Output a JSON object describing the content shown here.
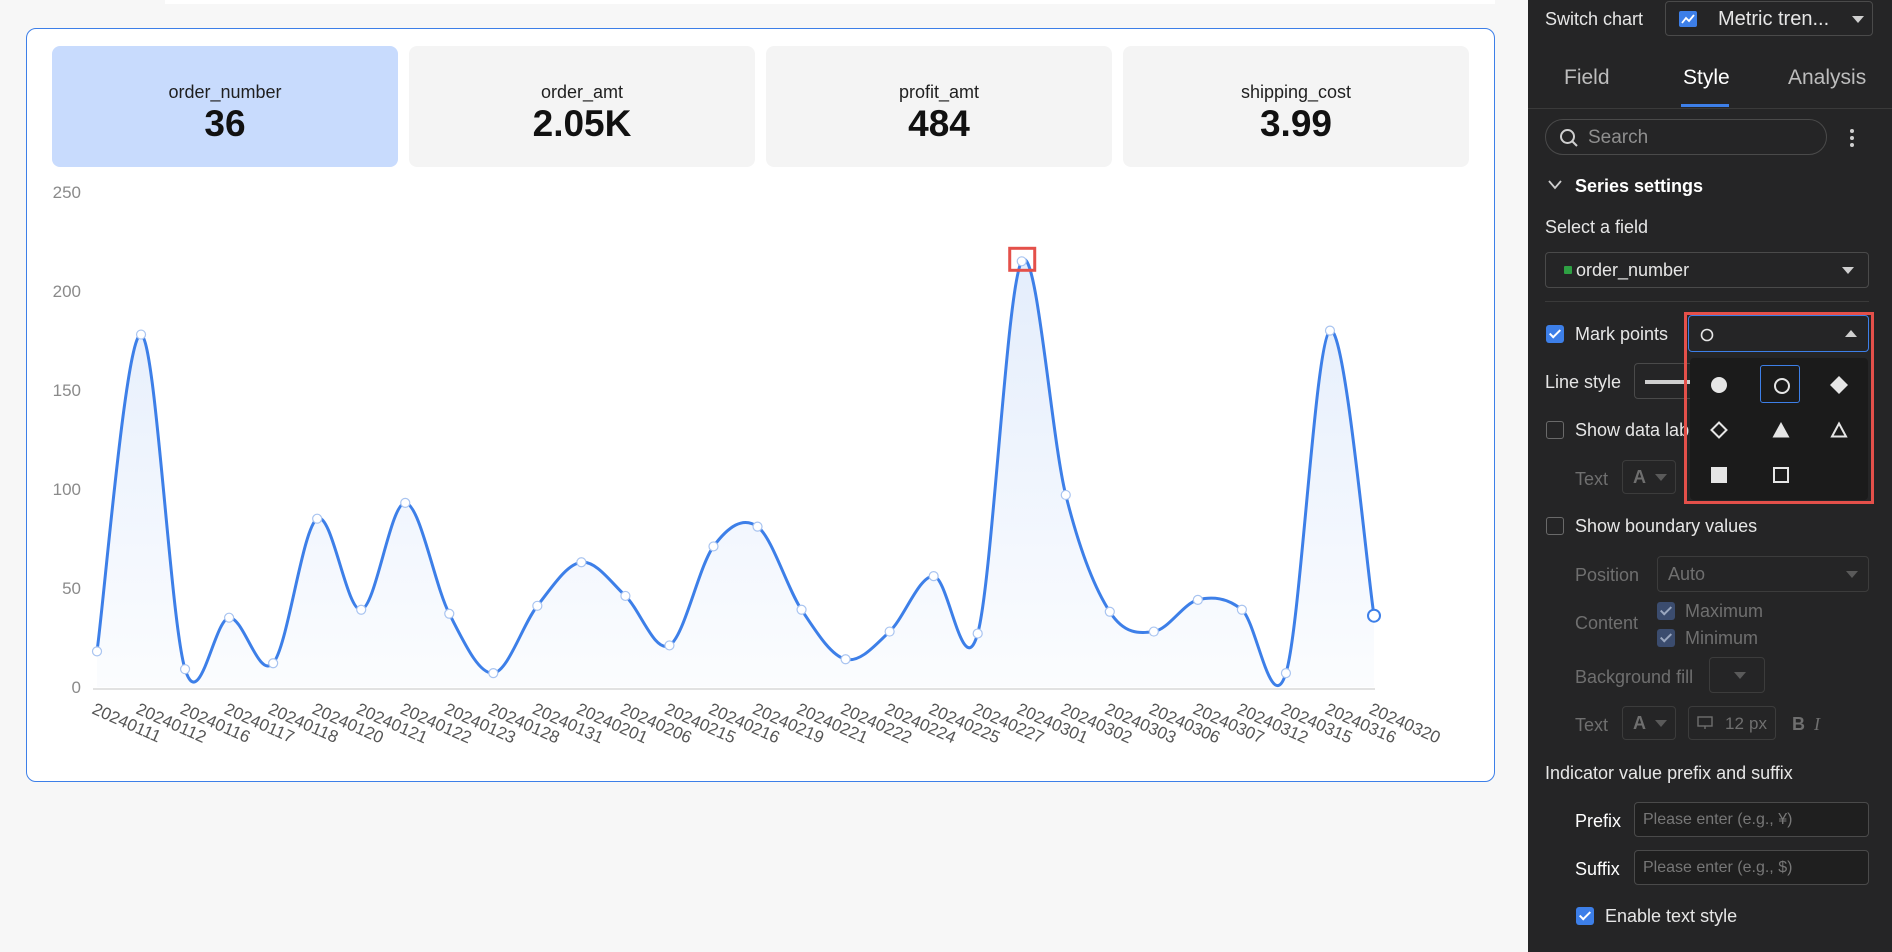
{
  "kpis": [
    {
      "label": "order_number",
      "value": "36",
      "selected": true
    },
    {
      "label": "order_amt",
      "value": "2.05K",
      "selected": false
    },
    {
      "label": "profit_amt",
      "value": "484",
      "selected": false
    },
    {
      "label": "shipping_cost",
      "value": "3.99",
      "selected": false
    }
  ],
  "chart_data": {
    "type": "line",
    "smooth": true,
    "area_fill": true,
    "line_color": "#3d7fe8",
    "ylim": [
      0,
      250
    ],
    "yticks": [
      0,
      50,
      100,
      150,
      200,
      250
    ],
    "categories": [
      "20240111",
      "20240112",
      "20240116",
      "20240117",
      "20240118",
      "20240120",
      "20240121",
      "20240122",
      "20240123",
      "20240128",
      "20240131",
      "20240201",
      "20240206",
      "20240215",
      "20240216",
      "20240219",
      "20240221",
      "20240222",
      "20240224",
      "20240225",
      "20240227",
      "20240301",
      "20240302",
      "20240303",
      "20240306",
      "20240307",
      "20240312",
      "20240315",
      "20240316",
      "20240320"
    ],
    "values": [
      18,
      178,
      9,
      35,
      12,
      85,
      39,
      93,
      37,
      7,
      41,
      63,
      46,
      21,
      71,
      81,
      39,
      14,
      28,
      56,
      27,
      215,
      97,
      38,
      28,
      44,
      39,
      7,
      180,
      36
    ],
    "highlight_index": 21,
    "highlight_color": "#e4504a",
    "grid": false,
    "legend": "none"
  },
  "panel": {
    "switch_chart_label": "Switch chart",
    "chart_type_value": "Metric tren...",
    "tabs": [
      "Field",
      "Style",
      "Analysis"
    ],
    "active_tab": "Style",
    "search_placeholder": "Search",
    "series_settings": "Series settings",
    "select_field_label": "Select a field",
    "select_field_value": "order_number",
    "field_color": "#2ea043",
    "mark_points_label": "Mark points",
    "line_style_label": "Line style",
    "show_data_label": "Show data lab",
    "text_label": "Text",
    "show_boundary_label": "Show boundary values",
    "position_label": "Position",
    "position_value": "Auto",
    "content_label": "Content",
    "maximum_label": "Maximum",
    "minimum_label": "Minimum",
    "background_fill_label": "Background fill",
    "text_label_2": "Text",
    "font_letter": "A",
    "font_size": "12",
    "font_unit": "px",
    "bold_letter": "B",
    "italic_letter": "I",
    "indicator_heading": "Indicator value prefix and suffix",
    "prefix_label": "Prefix",
    "prefix_placeholder": "Please enter (e.g., ¥)",
    "suffix_label": "Suffix",
    "suffix_placeholder": "Please enter (e.g., $)",
    "enable_text_style": "Enable text style"
  },
  "marker_options": [
    "filled-circle",
    "hollow-circle",
    "filled-diamond",
    "hollow-diamond",
    "filled-triangle",
    "hollow-triangle",
    "filled-square",
    "hollow-square"
  ],
  "selected_marker": "hollow-circle"
}
